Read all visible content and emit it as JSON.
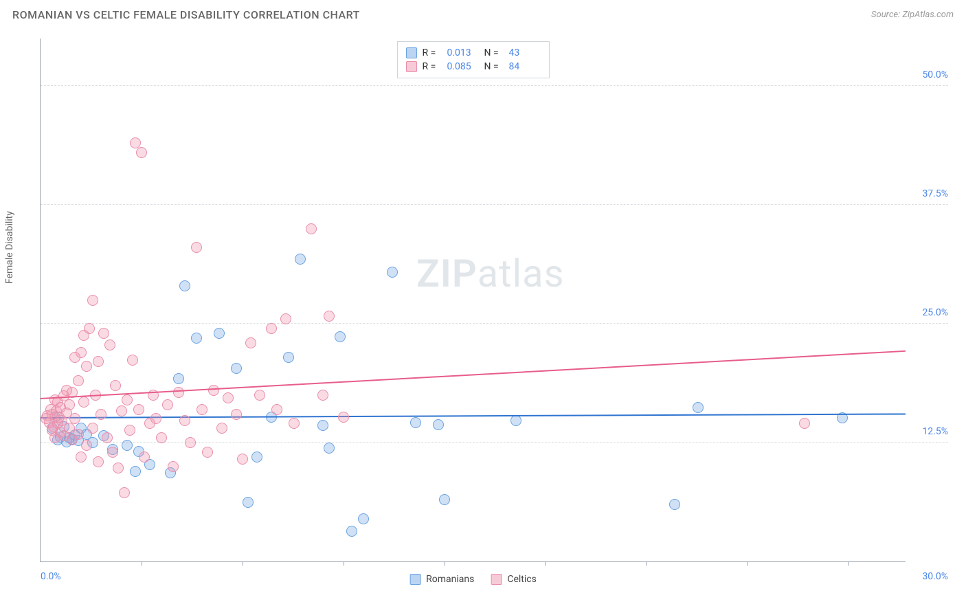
{
  "title": "ROMANIAN VS CELTIC FEMALE DISABILITY CORRELATION CHART",
  "source_label": "Source:",
  "source_value": "ZipAtlas.com",
  "ylabel": "Female Disability",
  "watermark_bold": "ZIP",
  "watermark_rest": "atlas",
  "chart": {
    "type": "scatter",
    "background_color": "#ffffff",
    "grid_color": "#dcdfe3",
    "axis_color": "#9aa4b0",
    "xlim": [
      0,
      30
    ],
    "ylim": [
      0,
      55
    ],
    "x_label_min": "0.0%",
    "x_label_max": "30.0%",
    "xtick_positions": [
      3.5,
      7,
      10.5,
      14,
      17.5,
      21,
      24.5,
      28
    ],
    "ygrid": [
      {
        "v": 12.5,
        "label": "12.5%"
      },
      {
        "v": 25.0,
        "label": "25.0%"
      },
      {
        "v": 37.5,
        "label": "37.5%"
      },
      {
        "v": 50.0,
        "label": "50.0%"
      }
    ],
    "marker_radius": 8,
    "marker_stroke_width": 1.5,
    "series": [
      {
        "name": "Romanians",
        "fill": "rgba(120,170,230,0.35)",
        "stroke": "#6aa3e0",
        "legend_sq_fill": "rgba(120,170,230,0.5)",
        "legend_sq_stroke": "#6aa3e0",
        "R": "0.013",
        "N": "43",
        "trend": {
          "y_at_x0": 15.2,
          "y_at_x30": 15.6,
          "color": "#2f74d0"
        },
        "points": [
          [
            0.4,
            14.0
          ],
          [
            0.5,
            15.2
          ],
          [
            0.6,
            12.8
          ],
          [
            0.7,
            13.1
          ],
          [
            0.8,
            14.2
          ],
          [
            0.9,
            12.6
          ],
          [
            1.0,
            13.0
          ],
          [
            1.1,
            12.9
          ],
          [
            1.2,
            13.3
          ],
          [
            1.3,
            12.7
          ],
          [
            1.4,
            14.0
          ],
          [
            1.6,
            13.4
          ],
          [
            1.8,
            12.5
          ],
          [
            2.2,
            13.2
          ],
          [
            2.5,
            11.8
          ],
          [
            3.0,
            12.2
          ],
          [
            3.3,
            9.5
          ],
          [
            3.4,
            11.6
          ],
          [
            3.8,
            10.2
          ],
          [
            4.5,
            9.3
          ],
          [
            4.8,
            19.2
          ],
          [
            5.0,
            29.0
          ],
          [
            5.4,
            23.5
          ],
          [
            6.2,
            24.0
          ],
          [
            6.8,
            20.3
          ],
          [
            7.2,
            6.2
          ],
          [
            7.5,
            11.0
          ],
          [
            8.0,
            15.2
          ],
          [
            8.6,
            21.5
          ],
          [
            9.0,
            31.8
          ],
          [
            9.8,
            14.3
          ],
          [
            10.0,
            11.9
          ],
          [
            10.4,
            23.6
          ],
          [
            10.8,
            3.2
          ],
          [
            11.2,
            4.5
          ],
          [
            12.2,
            30.4
          ],
          [
            13.0,
            14.6
          ],
          [
            13.8,
            14.4
          ],
          [
            14.0,
            6.5
          ],
          [
            16.5,
            14.8
          ],
          [
            22.0,
            6.0
          ],
          [
            22.8,
            16.2
          ],
          [
            27.8,
            15.1
          ]
        ]
      },
      {
        "name": "Celtics",
        "fill": "rgba(240,150,175,0.35)",
        "stroke": "#e98fab",
        "legend_sq_fill": "rgba(240,150,175,0.5)",
        "legend_sq_stroke": "#e98fab",
        "R": "0.085",
        "N": "84",
        "trend": {
          "y_at_x0": 17.2,
          "y_at_x30": 22.2,
          "color": "#e75d8a"
        },
        "points": [
          [
            0.2,
            15.0
          ],
          [
            0.25,
            15.3
          ],
          [
            0.3,
            14.6
          ],
          [
            0.35,
            16.0
          ],
          [
            0.4,
            13.8
          ],
          [
            0.4,
            15.5
          ],
          [
            0.45,
            14.2
          ],
          [
            0.5,
            13.0
          ],
          [
            0.5,
            17.0
          ],
          [
            0.55,
            15.8
          ],
          [
            0.6,
            14.5
          ],
          [
            0.6,
            16.8
          ],
          [
            0.65,
            15.2
          ],
          [
            0.7,
            13.6
          ],
          [
            0.7,
            16.2
          ],
          [
            0.75,
            14.8
          ],
          [
            0.8,
            17.4
          ],
          [
            0.8,
            13.2
          ],
          [
            0.9,
            15.6
          ],
          [
            0.9,
            18.0
          ],
          [
            1.0,
            14.0
          ],
          [
            1.0,
            16.5
          ],
          [
            1.1,
            17.8
          ],
          [
            1.1,
            12.8
          ],
          [
            1.2,
            21.5
          ],
          [
            1.2,
            15.0
          ],
          [
            1.3,
            19.0
          ],
          [
            1.3,
            13.4
          ],
          [
            1.4,
            22.0
          ],
          [
            1.4,
            11.0
          ],
          [
            1.5,
            23.8
          ],
          [
            1.5,
            16.8
          ],
          [
            1.6,
            20.5
          ],
          [
            1.6,
            12.2
          ],
          [
            1.7,
            24.5
          ],
          [
            1.8,
            14.0
          ],
          [
            1.8,
            27.5
          ],
          [
            1.9,
            17.5
          ],
          [
            2.0,
            21.0
          ],
          [
            2.0,
            10.5
          ],
          [
            2.1,
            15.5
          ],
          [
            2.2,
            24.0
          ],
          [
            2.3,
            13.0
          ],
          [
            2.4,
            22.8
          ],
          [
            2.5,
            11.5
          ],
          [
            2.6,
            18.5
          ],
          [
            2.7,
            9.8
          ],
          [
            2.8,
            15.8
          ],
          [
            2.9,
            7.2
          ],
          [
            3.0,
            17.0
          ],
          [
            3.1,
            13.8
          ],
          [
            3.2,
            21.2
          ],
          [
            3.3,
            44.0
          ],
          [
            3.4,
            16.0
          ],
          [
            3.5,
            43.0
          ],
          [
            3.6,
            11.0
          ],
          [
            3.8,
            14.5
          ],
          [
            3.9,
            17.5
          ],
          [
            4.0,
            15.0
          ],
          [
            4.2,
            13.0
          ],
          [
            4.4,
            16.5
          ],
          [
            4.6,
            10.0
          ],
          [
            4.8,
            17.8
          ],
          [
            5.0,
            14.8
          ],
          [
            5.2,
            12.5
          ],
          [
            5.4,
            33.0
          ],
          [
            5.6,
            16.0
          ],
          [
            5.8,
            11.5
          ],
          [
            6.0,
            18.0
          ],
          [
            6.3,
            14.0
          ],
          [
            6.5,
            17.2
          ],
          [
            6.8,
            15.5
          ],
          [
            7.0,
            10.8
          ],
          [
            7.3,
            23.0
          ],
          [
            7.6,
            17.5
          ],
          [
            8.0,
            24.5
          ],
          [
            8.2,
            16.0
          ],
          [
            8.5,
            25.5
          ],
          [
            8.8,
            14.5
          ],
          [
            9.4,
            35.0
          ],
          [
            9.8,
            17.5
          ],
          [
            10.5,
            15.2
          ],
          [
            10.0,
            25.8
          ],
          [
            26.5,
            14.5
          ]
        ]
      }
    ]
  },
  "legend_top": {
    "R_label": "R  =",
    "N_label": "N  ="
  },
  "legend_bottom_labels": [
    "Romanians",
    "Celtics"
  ]
}
